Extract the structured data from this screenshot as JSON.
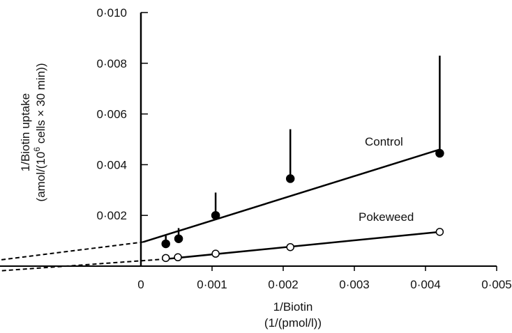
{
  "chart_data": {
    "type": "scatter",
    "title": "",
    "xlabel_line1": "1/Biotin",
    "xlabel_line2": "(1/(pmol/l))",
    "ylabel_line1": "1/Biotin uptake",
    "ylabel_line2_pre": "(amol/(10",
    "ylabel_line2_sup": "6",
    "ylabel_line2_post": " cells × 30 min))",
    "xlim": [
      -0.0043,
      0.005
    ],
    "ylim": [
      -0.0007,
      0.01
    ],
    "x_ticks": [
      0,
      0.001,
      0.002,
      0.003,
      0.004,
      0.005
    ],
    "x_tick_labels": [
      "0",
      "0·001",
      "0·002",
      "0·003",
      "0·004",
      "0·005"
    ],
    "y_ticks": [
      0.002,
      0.004,
      0.006,
      0.008,
      0.01
    ],
    "y_tick_labels": [
      "0·002",
      "0·004",
      "0·006",
      "0·008",
      "0·010"
    ],
    "series": [
      {
        "name": "Control",
        "marker": "filled-circle",
        "color": "#000000",
        "x": [
          0.00035,
          0.00053,
          0.00105,
          0.0021,
          0.0042
        ],
        "y": [
          0.00088,
          0.00108,
          0.002,
          0.00345,
          0.00445
        ],
        "error_upper": [
          0.0012,
          0.0015,
          0.0029,
          0.0054,
          0.0083
        ],
        "fit": {
          "x0": 3e-05,
          "y0": 0.00095,
          "x1": 0.0042,
          "y1": 0.0046
        },
        "extrapolation": {
          "x0": -0.0041,
          "y0": -0.0005,
          "x1": 3e-05,
          "y1": 0.00095
        }
      },
      {
        "name": "Pokeweed",
        "marker": "open-circle",
        "color": "#000000",
        "x": [
          0.00035,
          0.00052,
          0.00105,
          0.0021,
          0.0042
        ],
        "y": [
          0.00032,
          0.00035,
          0.00049,
          0.00075,
          0.00135
        ],
        "error_upper": [
          null,
          null,
          null,
          null,
          null
        ],
        "fit": {
          "x0": 0.00035,
          "y0": 0.00028,
          "x1": 0.0042,
          "y1": 0.00135
        },
        "extrapolation": {
          "x0": -0.0043,
          "y0": -0.00065,
          "x1": 0.00035,
          "y1": 0.00028
        }
      }
    ]
  }
}
